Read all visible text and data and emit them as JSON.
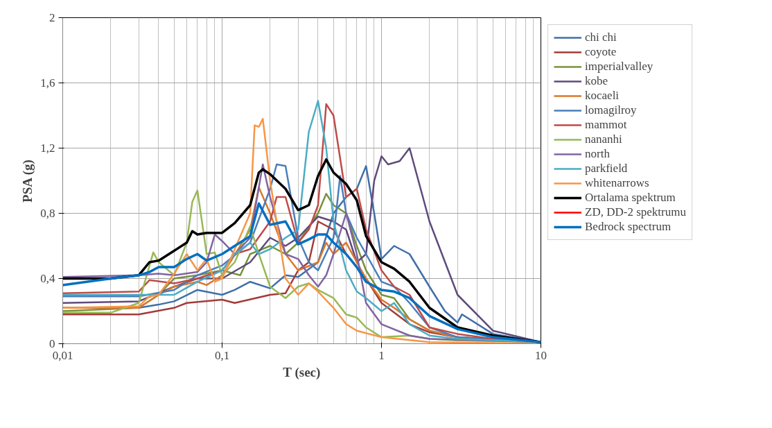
{
  "chart_data": {
    "type": "line",
    "xlabel": "T (sec)",
    "ylabel": "PSA (g)",
    "log": "x",
    "grid": true,
    "legend": "right",
    "xlim": [
      0.01,
      10
    ],
    "xticks": [
      {
        "value": 0.01,
        "label": "0,01"
      },
      {
        "value": 0.1,
        "label": "0,1"
      },
      1,
      10
    ],
    "ylim": [
      0,
      2
    ],
    "yticks": [
      0,
      {
        "value": 0.4,
        "label": "0,4"
      },
      {
        "value": 0.8,
        "label": "0,8"
      },
      {
        "value": 1.2,
        "label": "1,2"
      },
      {
        "value": 1.6,
        "label": "1,6"
      },
      2
    ],
    "series": [
      {
        "name": "chi chi",
        "color": "#3f6fa8",
        "x": [
          0.01,
          0.03,
          0.04,
          0.05,
          0.07,
          0.1,
          0.12,
          0.15,
          0.2,
          0.25,
          0.3,
          0.4,
          0.5,
          0.6,
          0.7,
          0.8,
          0.9,
          1,
          1.2,
          1.5,
          2,
          2.5,
          3,
          3.2,
          5,
          10
        ],
        "values": [
          0.22,
          0.22,
          0.24,
          0.26,
          0.33,
          0.3,
          0.33,
          0.38,
          0.34,
          0.42,
          0.41,
          0.5,
          0.8,
          0.9,
          0.95,
          1.09,
          0.8,
          0.52,
          0.6,
          0.55,
          0.35,
          0.2,
          0.13,
          0.18,
          0.06,
          0.01
        ]
      },
      {
        "name": "coyote",
        "color": "#a33b38",
        "x": [
          0.01,
          0.03,
          0.05,
          0.06,
          0.1,
          0.12,
          0.2,
          0.25,
          0.3,
          0.35,
          0.4,
          0.5,
          0.6,
          0.8,
          1,
          1.5,
          2,
          3,
          5,
          10
        ],
        "values": [
          0.18,
          0.18,
          0.22,
          0.25,
          0.27,
          0.25,
          0.3,
          0.31,
          0.45,
          0.5,
          0.75,
          0.7,
          0.55,
          0.4,
          0.25,
          0.12,
          0.07,
          0.04,
          0.02,
          0.01
        ]
      },
      {
        "name": "imperialvalley",
        "color": "#77933c",
        "x": [
          0.01,
          0.03,
          0.04,
          0.05,
          0.07,
          0.1,
          0.13,
          0.15,
          0.2,
          0.25,
          0.3,
          0.4,
          0.45,
          0.5,
          0.6,
          0.7,
          0.8,
          1,
          1.2,
          1.5,
          2,
          3,
          10
        ],
        "values": [
          0.2,
          0.22,
          0.3,
          0.4,
          0.42,
          0.45,
          0.42,
          0.55,
          0.6,
          0.55,
          0.62,
          0.8,
          0.92,
          0.85,
          0.8,
          0.6,
          0.45,
          0.3,
          0.28,
          0.15,
          0.08,
          0.04,
          0.01
        ]
      },
      {
        "name": "kobe",
        "color": "#604a7b",
        "x": [
          0.01,
          0.03,
          0.05,
          0.07,
          0.1,
          0.15,
          0.2,
          0.25,
          0.3,
          0.4,
          0.5,
          0.6,
          0.7,
          0.8,
          0.9,
          1,
          1.1,
          1.3,
          1.5,
          2,
          3,
          5,
          10
        ],
        "values": [
          0.25,
          0.26,
          0.35,
          0.4,
          0.4,
          0.5,
          0.65,
          0.6,
          0.65,
          0.78,
          0.75,
          0.7,
          0.5,
          0.55,
          1.0,
          1.15,
          1.1,
          1.12,
          1.2,
          0.75,
          0.3,
          0.08,
          0.01
        ]
      },
      {
        "name": "kocaeli",
        "color": "#d9782e",
        "x": [
          0.01,
          0.03,
          0.04,
          0.05,
          0.07,
          0.08,
          0.1,
          0.15,
          0.17,
          0.2,
          0.25,
          0.3,
          0.4,
          0.45,
          0.5,
          0.6,
          0.7,
          0.8,
          1,
          1.2,
          1.5,
          2,
          3,
          10
        ],
        "values": [
          0.22,
          0.22,
          0.3,
          0.35,
          0.38,
          0.36,
          0.42,
          0.7,
          0.96,
          0.8,
          0.55,
          0.45,
          0.5,
          0.62,
          0.55,
          0.62,
          0.5,
          0.4,
          0.27,
          0.22,
          0.15,
          0.08,
          0.04,
          0.01
        ]
      },
      {
        "name": "lomagilroy",
        "color": "#4a7ebb",
        "x": [
          0.01,
          0.03,
          0.05,
          0.07,
          0.1,
          0.15,
          0.2,
          0.22,
          0.25,
          0.3,
          0.35,
          0.4,
          0.5,
          0.55,
          0.6,
          0.7,
          0.8,
          1,
          1.2,
          1.5,
          2,
          3,
          10
        ],
        "values": [
          0.29,
          0.29,
          0.33,
          0.42,
          0.48,
          0.62,
          0.95,
          1.1,
          1.09,
          0.65,
          0.5,
          0.45,
          0.65,
          1.03,
          0.8,
          0.65,
          0.55,
          0.38,
          0.35,
          0.25,
          0.1,
          0.04,
          0.01
        ]
      },
      {
        "name": "mammot",
        "color": "#be4b48",
        "x": [
          0.01,
          0.03,
          0.035,
          0.05,
          0.07,
          0.1,
          0.12,
          0.15,
          0.2,
          0.22,
          0.25,
          0.3,
          0.35,
          0.4,
          0.45,
          0.5,
          0.6,
          0.7,
          0.8,
          1,
          1.2,
          1.5,
          2,
          3,
          5,
          10
        ],
        "values": [
          0.31,
          0.32,
          0.39,
          0.37,
          0.4,
          0.45,
          0.55,
          0.58,
          0.75,
          0.9,
          0.9,
          0.62,
          0.7,
          0.85,
          1.47,
          1.4,
          0.9,
          0.95,
          0.7,
          0.45,
          0.35,
          0.3,
          0.1,
          0.06,
          0.03,
          0.01
        ]
      },
      {
        "name": "nananhi",
        "color": "#98b954",
        "x": [
          0.01,
          0.02,
          0.03,
          0.037,
          0.04,
          0.05,
          0.06,
          0.065,
          0.07,
          0.08,
          0.09,
          0.1,
          0.12,
          0.15,
          0.17,
          0.2,
          0.25,
          0.3,
          0.35,
          0.4,
          0.5,
          0.6,
          0.7,
          0.8,
          1,
          1.5,
          2,
          3,
          10
        ],
        "values": [
          0.19,
          0.19,
          0.25,
          0.56,
          0.5,
          0.42,
          0.62,
          0.87,
          0.94,
          0.55,
          0.56,
          0.42,
          0.5,
          0.72,
          0.55,
          0.35,
          0.28,
          0.35,
          0.37,
          0.33,
          0.28,
          0.18,
          0.16,
          0.1,
          0.04,
          0.05,
          0.03,
          0.02,
          0.01
        ]
      },
      {
        "name": "north",
        "color": "#8064a2",
        "x": [
          0.01,
          0.03,
          0.04,
          0.05,
          0.07,
          0.08,
          0.09,
          0.1,
          0.12,
          0.15,
          0.18,
          0.2,
          0.25,
          0.3,
          0.35,
          0.4,
          0.45,
          0.5,
          0.6,
          0.7,
          0.8,
          1,
          1.5,
          2,
          10
        ],
        "values": [
          0.41,
          0.42,
          0.43,
          0.42,
          0.44,
          0.5,
          0.67,
          0.63,
          0.55,
          0.65,
          1.1,
          0.9,
          0.55,
          0.52,
          0.42,
          0.35,
          0.42,
          0.55,
          0.8,
          0.55,
          0.25,
          0.12,
          0.05,
          0.03,
          0.01
        ]
      },
      {
        "name": "parkfield",
        "color": "#4bacc6",
        "x": [
          0.01,
          0.03,
          0.05,
          0.07,
          0.1,
          0.12,
          0.15,
          0.17,
          0.2,
          0.25,
          0.3,
          0.35,
          0.4,
          0.45,
          0.5,
          0.6,
          0.7,
          0.8,
          1,
          1.2,
          1.5,
          2,
          3,
          10
        ],
        "values": [
          0.3,
          0.3,
          0.3,
          0.38,
          0.45,
          0.55,
          0.62,
          0.55,
          0.58,
          0.65,
          0.7,
          1.3,
          1.49,
          1.2,
          0.75,
          0.45,
          0.32,
          0.28,
          0.2,
          0.25,
          0.12,
          0.05,
          0.03,
          0.01
        ]
      },
      {
        "name": "whitenarrows",
        "color": "#f79646",
        "x": [
          0.01,
          0.03,
          0.035,
          0.04,
          0.05,
          0.06,
          0.07,
          0.08,
          0.09,
          0.1,
          0.12,
          0.15,
          0.16,
          0.17,
          0.18,
          0.2,
          0.25,
          0.3,
          0.35,
          0.4,
          0.5,
          0.6,
          0.7,
          1,
          2,
          10
        ],
        "values": [
          0.22,
          0.23,
          0.29,
          0.3,
          0.43,
          0.55,
          0.45,
          0.52,
          0.38,
          0.4,
          0.58,
          0.8,
          1.34,
          1.33,
          1.38,
          1.0,
          0.4,
          0.3,
          0.37,
          0.32,
          0.22,
          0.12,
          0.08,
          0.04,
          0.01,
          0.0
        ]
      },
      {
        "name": "Ortalama spektrum",
        "color": "#000000",
        "x": [
          0.01,
          0.02,
          0.03,
          0.035,
          0.04,
          0.05,
          0.06,
          0.065,
          0.07,
          0.08,
          0.1,
          0.12,
          0.15,
          0.17,
          0.18,
          0.2,
          0.25,
          0.3,
          0.35,
          0.4,
          0.45,
          0.5,
          0.6,
          0.7,
          0.8,
          1,
          1.2,
          1.5,
          2,
          3,
          5,
          10
        ],
        "values": [
          0.4,
          0.4,
          0.42,
          0.5,
          0.51,
          0.57,
          0.62,
          0.69,
          0.67,
          0.68,
          0.68,
          0.74,
          0.85,
          1.05,
          1.07,
          1.04,
          0.95,
          0.82,
          0.85,
          1.03,
          1.13,
          1.05,
          0.98,
          0.88,
          0.66,
          0.5,
          0.46,
          0.38,
          0.22,
          0.1,
          0.05,
          0.01
        ]
      },
      {
        "name": "ZD, DD-2 spektrumu",
        "color": "#ff0000"
      },
      {
        "name": "Bedrock spectrum",
        "color": "#0070c0",
        "x": [
          0.01,
          0.02,
          0.03,
          0.035,
          0.04,
          0.05,
          0.06,
          0.07,
          0.08,
          0.1,
          0.12,
          0.15,
          0.17,
          0.2,
          0.25,
          0.3,
          0.35,
          0.4,
          0.45,
          0.5,
          0.6,
          0.7,
          0.8,
          1,
          1.2,
          1.5,
          2,
          3,
          5,
          10
        ],
        "values": [
          0.36,
          0.4,
          0.42,
          0.44,
          0.47,
          0.47,
          0.52,
          0.55,
          0.51,
          0.55,
          0.6,
          0.66,
          0.86,
          0.73,
          0.75,
          0.61,
          0.64,
          0.67,
          0.67,
          0.62,
          0.55,
          0.47,
          0.38,
          0.33,
          0.32,
          0.28,
          0.17,
          0.09,
          0.04,
          0.01
        ]
      }
    ]
  }
}
